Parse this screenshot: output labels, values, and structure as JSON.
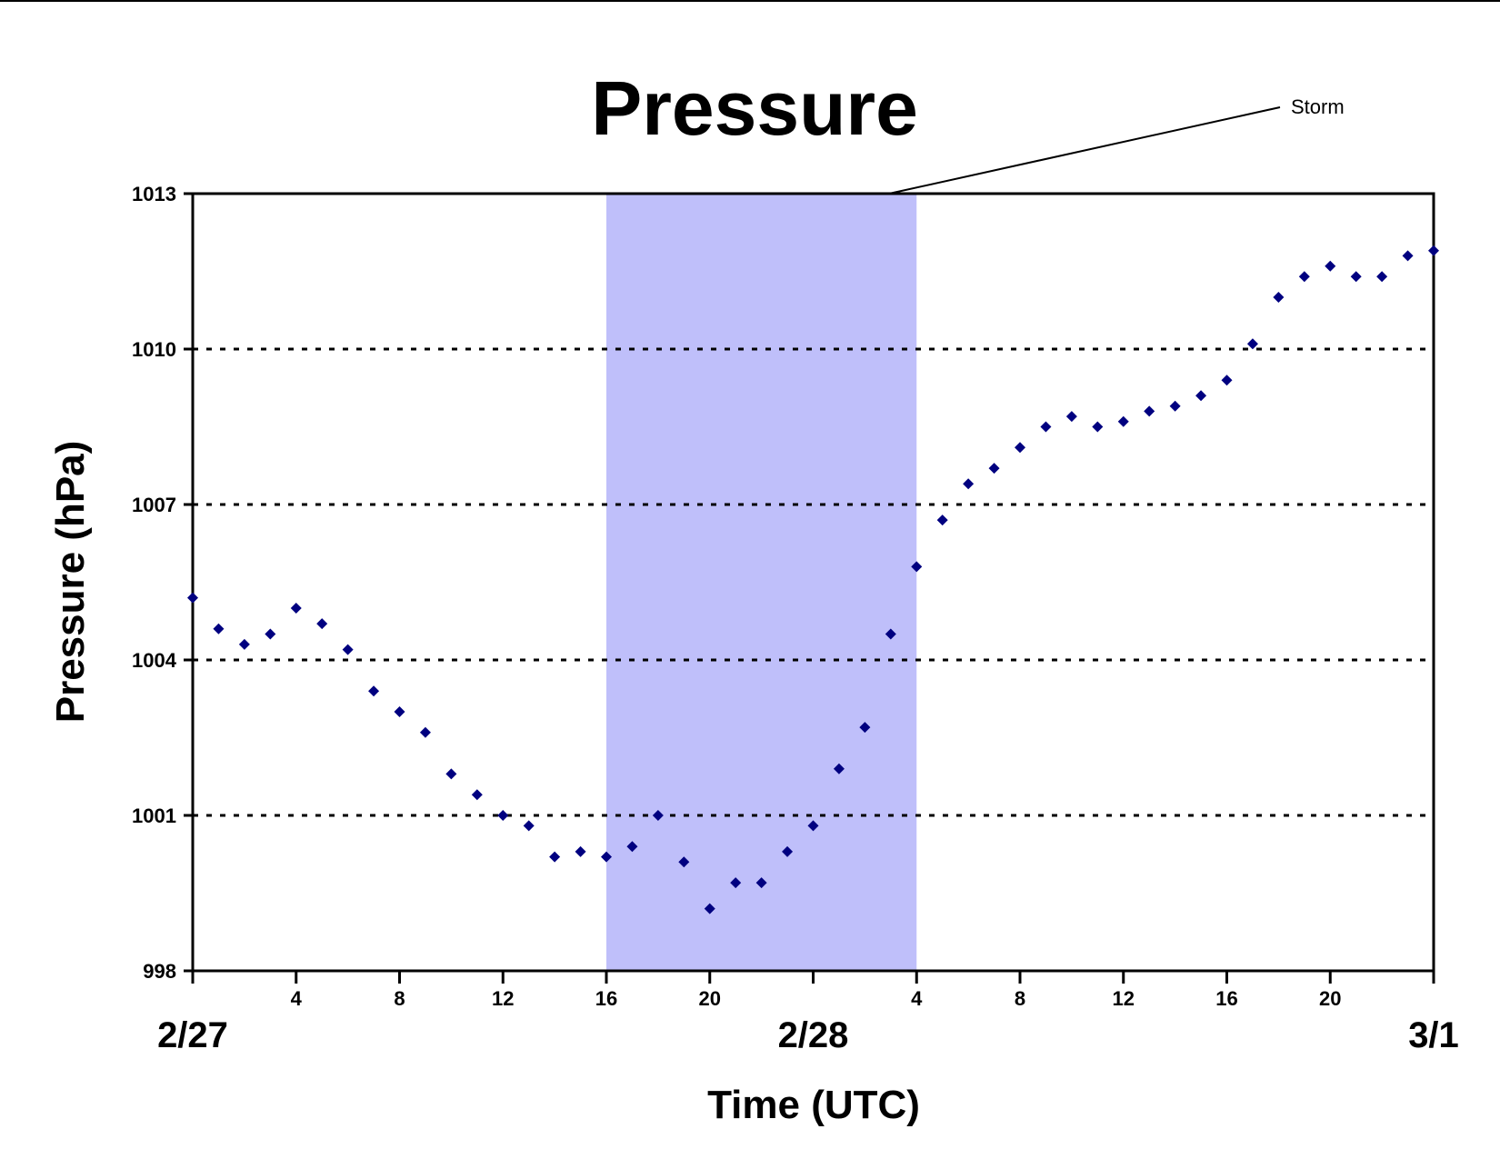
{
  "chart_data": {
    "type": "scatter",
    "title": "Pressure",
    "xlabel": "Time (UTC)",
    "ylabel": "Pressure (hPa)",
    "ylim": [
      998,
      1013
    ],
    "yticks": [
      998,
      1001,
      1004,
      1007,
      1010,
      1013
    ],
    "xlim": [
      0,
      48
    ],
    "hour_ticks": [
      {
        "x": 4,
        "label": "4"
      },
      {
        "x": 8,
        "label": "8"
      },
      {
        "x": 12,
        "label": "12"
      },
      {
        "x": 16,
        "label": "16"
      },
      {
        "x": 20,
        "label": "20"
      },
      {
        "x": 28,
        "label": "4"
      },
      {
        "x": 32,
        "label": "8"
      },
      {
        "x": 36,
        "label": "12"
      },
      {
        "x": 40,
        "label": "16"
      },
      {
        "x": 44,
        "label": "20"
      }
    ],
    "date_labels": [
      {
        "x": 0,
        "label": "2/27"
      },
      {
        "x": 24,
        "label": "2/28"
      },
      {
        "x": 48,
        "label": "3/1"
      }
    ],
    "grid": "horizontal dotted",
    "marker_color": "#000080",
    "shaded_region": {
      "x0": 16,
      "x1": 28,
      "color": "#bfbffa",
      "label": "Storm"
    },
    "points": [
      [
        0,
        1005.2
      ],
      [
        1,
        1004.6
      ],
      [
        2,
        1004.3
      ],
      [
        3,
        1004.5
      ],
      [
        4,
        1005.0
      ],
      [
        5,
        1004.7
      ],
      [
        6,
        1004.2
      ],
      [
        7,
        1003.4
      ],
      [
        8,
        1003.0
      ],
      [
        9,
        1002.6
      ],
      [
        10,
        1001.8
      ],
      [
        11,
        1001.4
      ],
      [
        12,
        1001.0
      ],
      [
        13,
        1000.8
      ],
      [
        14,
        1000.2
      ],
      [
        15,
        1000.3
      ],
      [
        16,
        1000.2
      ],
      [
        17,
        1000.4
      ],
      [
        18,
        1001.0
      ],
      [
        19,
        1000.1
      ],
      [
        20,
        999.2
      ],
      [
        21,
        999.7
      ],
      [
        22,
        999.7
      ],
      [
        23,
        1000.3
      ],
      [
        24,
        1000.8
      ],
      [
        25,
        1001.9
      ],
      [
        26,
        1002.7
      ],
      [
        27,
        1004.5
      ],
      [
        28,
        1005.8
      ],
      [
        29,
        1006.7
      ],
      [
        30,
        1007.4
      ],
      [
        31,
        1007.7
      ],
      [
        32,
        1008.1
      ],
      [
        33,
        1008.5
      ],
      [
        34,
        1008.7
      ],
      [
        35,
        1008.5
      ],
      [
        36,
        1008.6
      ],
      [
        37,
        1008.8
      ],
      [
        38,
        1008.9
      ],
      [
        39,
        1009.1
      ],
      [
        40,
        1009.4
      ],
      [
        41,
        1010.1
      ],
      [
        42,
        1011.0
      ],
      [
        43,
        1011.4
      ],
      [
        44,
        1011.6
      ],
      [
        45,
        1011.4
      ],
      [
        46,
        1011.4
      ],
      [
        47,
        1011.8
      ],
      [
        48,
        1011.9
      ]
    ]
  }
}
